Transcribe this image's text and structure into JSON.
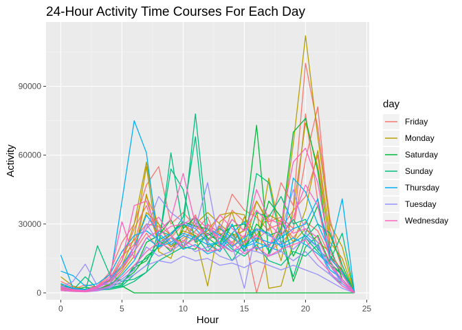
{
  "chart_data": {
    "type": "line",
    "title": "24-Hour Activity Time Courses For Each Day",
    "xlabel": "Hour",
    "ylabel": "Activity",
    "xlim": [
      -1.2,
      25.2
    ],
    "ylim": [
      -3000,
      118000
    ],
    "x_ticks": [
      0,
      5,
      10,
      15,
      20,
      25
    ],
    "y_ticks": [
      0,
      30000,
      60000,
      90000
    ],
    "y_tick_labels": [
      "0",
      "30000",
      "60000",
      "90000"
    ],
    "x": [
      0,
      1,
      2,
      3,
      4,
      5,
      6,
      7,
      8,
      9,
      10,
      11,
      12,
      13,
      14,
      15,
      16,
      17,
      18,
      19,
      20,
      21,
      22,
      23,
      24
    ],
    "grid": true,
    "legend": {
      "title": "day",
      "placement": "right"
    },
    "background": "#ebebeb",
    "series": [
      {
        "name": "Friday",
        "color": "#F8766D",
        "lines": [
          [
            5000,
            2500,
            1500,
            3000,
            9000,
            22000,
            30000,
            47000,
            55000,
            30000,
            35000,
            29000,
            25000,
            27000,
            43000,
            36000,
            33000,
            27000,
            48000,
            38000,
            100000,
            72000,
            32000,
            12000,
            0
          ],
          [
            3000,
            1500,
            1000,
            2000,
            6000,
            14000,
            28000,
            38000,
            22000,
            25000,
            31000,
            22000,
            30000,
            26000,
            22000,
            28000,
            40000,
            31000,
            33000,
            28000,
            58000,
            81000,
            28000,
            10000,
            0
          ],
          [
            2000,
            1500,
            3500,
            2500,
            8000,
            18000,
            23000,
            30000,
            29000,
            22000,
            25000,
            34000,
            21000,
            18000,
            26000,
            22000,
            25000,
            20000,
            28000,
            36000,
            42000,
            60000,
            20000,
            6000,
            0
          ],
          [
            1500,
            700,
            600,
            1500,
            4000,
            10000,
            18000,
            26000,
            19000,
            24000,
            30000,
            26000,
            23000,
            29000,
            20000,
            25000,
            0,
            18000,
            22000,
            27000,
            78000,
            40000,
            14000,
            5000,
            0
          ],
          [
            4000,
            2000,
            1200,
            2500,
            6000,
            16000,
            21000,
            42000,
            30000,
            20000,
            24000,
            27000,
            33000,
            20000,
            36000,
            31000,
            23000,
            28000,
            30000,
            24000,
            31000,
            27000,
            16000,
            8000,
            0
          ]
        ]
      },
      {
        "name": "Monday",
        "color": "#B79F00",
        "lines": [
          [
            7000,
            3000,
            1500,
            2500,
            5000,
            14000,
            30000,
            57000,
            25000,
            20000,
            27000,
            25000,
            3000,
            31000,
            35000,
            34000,
            18000,
            50000,
            25000,
            65000,
            112000,
            68000,
            30000,
            20000,
            0
          ],
          [
            2000,
            1000,
            800,
            1500,
            3000,
            9000,
            16000,
            43000,
            20000,
            24000,
            22000,
            30000,
            35000,
            30000,
            25000,
            27000,
            36000,
            2000,
            3000,
            22000,
            36000,
            62000,
            25000,
            12000,
            0
          ],
          [
            1500,
            800,
            500,
            1200,
            4000,
            12000,
            24000,
            55000,
            18000,
            15000,
            30000,
            24000,
            27000,
            34000,
            35000,
            20000,
            40000,
            30000,
            14000,
            36000,
            74000,
            55000,
            22000,
            15000,
            0
          ],
          [
            3500,
            1200,
            900,
            2000,
            5500,
            11000,
            20000,
            35000,
            30000,
            25000,
            19000,
            33000,
            23000,
            26000,
            20000,
            33000,
            25000,
            34000,
            31000,
            22000,
            28000,
            22000,
            18000,
            9000,
            0
          ]
        ]
      },
      {
        "name": "Saturday",
        "color": "#00BA38",
        "lines": [
          [
            4000,
            2000,
            1500,
            3000,
            4000,
            6000,
            10000,
            22000,
            25000,
            32000,
            20000,
            19000,
            26000,
            22000,
            32000,
            27000,
            73000,
            17000,
            28000,
            70000,
            76000,
            53000,
            16000,
            10000,
            0
          ],
          [
            2500,
            1200,
            2500,
            1500,
            2000,
            3000,
            0,
            0,
            0,
            0,
            0,
            0,
            0,
            0,
            0,
            0,
            0,
            0,
            0,
            0,
            0,
            0,
            0,
            0,
            0
          ],
          [
            1500,
            800,
            600,
            1000,
            2000,
            5000,
            9000,
            16000,
            20000,
            26000,
            31000,
            29000,
            28000,
            25000,
            29000,
            30000,
            22000,
            40000,
            33000,
            16000,
            26000,
            38000,
            20000,
            6000,
            0
          ],
          [
            3000,
            1800,
            1000,
            1500,
            3500,
            4000,
            11000,
            14000,
            23000,
            18000,
            28000,
            33000,
            24000,
            20000,
            26000,
            18000,
            30000,
            25000,
            27000,
            5000,
            20000,
            25000,
            13000,
            8000,
            0
          ]
        ]
      },
      {
        "name": "Sunday",
        "color": "#00BF7D",
        "lines": [
          [
            3000,
            1500,
            800,
            1000,
            2000,
            3500,
            12000,
            15000,
            20000,
            61000,
            28000,
            78000,
            28000,
            21000,
            30000,
            18000,
            35000,
            33000,
            42000,
            30000,
            32000,
            19000,
            14000,
            26000,
            0
          ],
          [
            2000,
            1000,
            600,
            20500,
            8000,
            5000,
            6000,
            9000,
            27000,
            25000,
            33000,
            68000,
            20000,
            22000,
            14000,
            22000,
            52000,
            48000,
            22000,
            7000,
            24000,
            30000,
            26000,
            12000,
            0
          ],
          [
            4000,
            1200,
            7000,
            1800,
            2000,
            3000,
            8000,
            12000,
            21000,
            54000,
            45000,
            22000,
            25000,
            28000,
            24000,
            20000,
            28000,
            18000,
            25000,
            32000,
            24000,
            18000,
            12000,
            8000,
            0
          ],
          [
            1500,
            900,
            500,
            1200,
            1500,
            2500,
            5000,
            9000,
            14000,
            17000,
            20000,
            25000,
            18000,
            24000,
            19000,
            16000,
            21000,
            14000,
            12000,
            18000,
            16000,
            21000,
            8000,
            4000,
            0
          ]
        ]
      },
      {
        "name": "Thursday",
        "color": "#00B0F6",
        "lines": [
          [
            16500,
            2000,
            1500,
            2500,
            5000,
            40000,
            75000,
            61000,
            20000,
            24000,
            19000,
            21000,
            17000,
            19000,
            30000,
            20000,
            22000,
            20000,
            18000,
            50000,
            44000,
            30000,
            18000,
            41000,
            0
          ],
          [
            9500,
            7500,
            3000,
            4000,
            8000,
            18000,
            25000,
            27000,
            23000,
            26000,
            30000,
            28000,
            22000,
            18000,
            26000,
            31000,
            19000,
            21000,
            24000,
            28000,
            30000,
            41000,
            15000,
            9000,
            0
          ],
          [
            2500,
            1500,
            1000,
            2000,
            6000,
            12000,
            20000,
            34000,
            26000,
            21000,
            25000,
            23000,
            28000,
            25000,
            20000,
            24000,
            28000,
            26000,
            20000,
            22000,
            25000,
            20000,
            10000,
            6000,
            0
          ],
          [
            4000,
            2000,
            1200,
            1500,
            3000,
            8000,
            14000,
            24000,
            20000,
            22000,
            26000,
            24000,
            21000,
            22000,
            18000,
            20000,
            24000,
            22000,
            21000,
            24000,
            21000,
            17000,
            12000,
            5000,
            0
          ]
        ]
      },
      {
        "name": "Tuesday",
        "color": "#9590FF",
        "lines": [
          [
            2500,
            5000,
            12500,
            3000,
            4000,
            10000,
            20000,
            28000,
            42000,
            35000,
            31000,
            28000,
            48000,
            20000,
            25000,
            19000,
            18000,
            16000,
            27000,
            45000,
            26000,
            22000,
            8000,
            5000,
            0
          ],
          [
            1500,
            1000,
            800,
            2000,
            5000,
            12000,
            18000,
            30000,
            22000,
            24000,
            20000,
            32000,
            22000,
            30000,
            21000,
            2000,
            28000,
            25000,
            22000,
            19000,
            24000,
            20000,
            12000,
            4000,
            0
          ],
          [
            3000,
            1500,
            1000,
            1500,
            2500,
            6000,
            10000,
            20000,
            16000,
            18000,
            22000,
            18000,
            20000,
            16000,
            14000,
            18000,
            20000,
            16000,
            18000,
            14000,
            18000,
            12000,
            8000,
            3000,
            0
          ],
          [
            1000,
            600,
            400,
            900,
            2000,
            5000,
            8000,
            12000,
            14000,
            13000,
            16000,
            14000,
            15000,
            12000,
            13000,
            11000,
            14000,
            12000,
            10000,
            12000,
            10000,
            8000,
            5000,
            2000,
            0
          ]
        ]
      },
      {
        "name": "Wednesday",
        "color": "#FF62BC",
        "lines": [
          [
            2000,
            1000,
            800,
            2000,
            7000,
            31000,
            15000,
            24000,
            27000,
            32000,
            52000,
            30000,
            25000,
            34000,
            28000,
            24000,
            45000,
            32000,
            30000,
            57000,
            63000,
            48000,
            18000,
            8000,
            0
          ],
          [
            1500,
            1200,
            1000,
            3000,
            6000,
            14000,
            38000,
            40000,
            25000,
            29000,
            30000,
            33000,
            28000,
            24000,
            32000,
            27000,
            36000,
            30000,
            25000,
            33000,
            47000,
            38000,
            14000,
            5000,
            0
          ],
          [
            2500,
            1500,
            900,
            2500,
            5000,
            10000,
            20000,
            28000,
            33000,
            25000,
            20000,
            24000,
            30000,
            21000,
            18000,
            22000,
            25000,
            20000,
            32000,
            26000,
            28000,
            24000,
            12000,
            6000,
            0
          ],
          [
            1000,
            700,
            500,
            1200,
            3000,
            7000,
            12000,
            18000,
            22000,
            19000,
            23000,
            20000,
            18000,
            19000,
            22000,
            17000,
            20000,
            16000,
            19000,
            21000,
            23000,
            15000,
            9000,
            3000,
            0
          ]
        ]
      }
    ]
  }
}
